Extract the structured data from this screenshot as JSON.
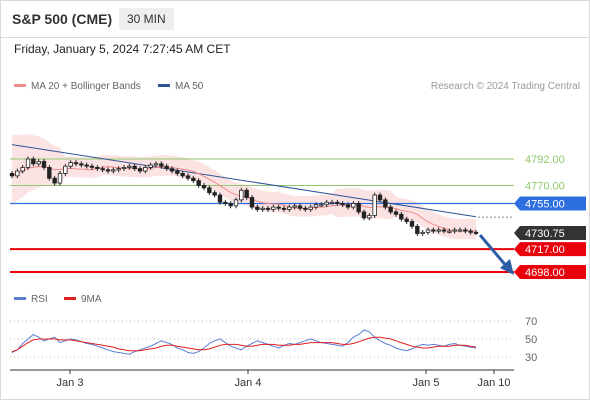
{
  "header": {
    "symbol": "S&P 500 (CME)",
    "timeframe": "30 MIN"
  },
  "datetime": "Friday, January 5, 2024 7:27:45 AM CET",
  "legend_main": [
    {
      "label": "MA 20 + Bollinger Bands",
      "color": "#f08c8c"
    },
    {
      "label": "MA 50",
      "color": "#2e5597"
    }
  ],
  "legend_rsi": [
    {
      "label": "RSI",
      "color": "#5b7fd4"
    },
    {
      "label": "9MA",
      "color": "#e02020"
    }
  ],
  "credit": "Research © 2024 Trading Central",
  "colors": {
    "support": "#e8000b",
    "pivot": "#2e6fe0",
    "resistance": "#8fc86e",
    "last": "#333333",
    "arrow": "#2e5fa6"
  },
  "chart_data": {
    "type": "candlestick",
    "y_range": [
      4680,
      4835
    ],
    "x_labels": [
      "Jan 3",
      "Jan 4",
      "Jan 5",
      "Jan 10"
    ],
    "levels": [
      {
        "value": 4792,
        "label": "4792.00",
        "kind": "resistance"
      },
      {
        "value": 4770,
        "label": "4770.00",
        "kind": "resistance"
      },
      {
        "value": 4755,
        "label": "4755.00",
        "kind": "pivot"
      },
      {
        "value": 4730.75,
        "label": "4730.75",
        "kind": "last"
      },
      {
        "value": 4717,
        "label": "4717.00",
        "kind": "support"
      },
      {
        "value": 4698,
        "label": "4698.00",
        "kind": "support"
      }
    ],
    "close_series": [
      4778,
      4782,
      4785,
      4792,
      4788,
      4790,
      4785,
      4776,
      4772,
      4780,
      4786,
      4789,
      4788,
      4787,
      4786,
      4785,
      4784,
      4783,
      4782,
      4783,
      4784,
      4785,
      4786,
      4784,
      4782,
      4785,
      4787,
      4788,
      4786,
      4784,
      4782,
      4780,
      4778,
      4776,
      4774,
      4770,
      4768,
      4764,
      4762,
      4756,
      4755,
      4753,
      4758,
      4766,
      4760,
      4752,
      4750,
      4751,
      4750,
      4752,
      4751,
      4750,
      4752,
      4753,
      4751,
      4750,
      4752,
      4754,
      4754,
      4756,
      4756,
      4755,
      4754,
      4752,
      4755,
      4748,
      4743,
      4745,
      4762,
      4758,
      4752,
      4748,
      4746,
      4742,
      4740,
      4736,
      4730,
      4731,
      4733,
      4732,
      4733,
      4732,
      4732,
      4733,
      4733,
      4732,
      4731,
      4730.75
    ],
    "ma50_start": 4804,
    "ma50_end": 4744,
    "rsi": {
      "levels": [
        70,
        50,
        30
      ],
      "rsi_values": [
        35,
        38,
        45,
        50,
        55,
        52,
        48,
        50,
        52,
        46,
        48,
        50,
        49,
        47,
        45,
        44,
        42,
        40,
        38,
        36,
        35,
        34,
        33,
        36,
        38,
        40,
        42,
        45,
        48,
        46,
        44,
        40,
        38,
        35,
        34,
        36,
        40,
        45,
        48,
        50,
        46,
        42,
        40,
        38,
        42,
        45,
        48,
        46,
        44,
        42,
        40,
        43,
        45,
        44,
        46,
        48,
        50,
        48,
        46,
        45,
        44,
        43,
        42,
        46,
        52,
        55,
        60,
        58,
        52,
        48,
        45,
        43,
        40,
        38,
        37,
        39,
        42,
        44,
        43,
        44,
        43,
        42,
        44,
        45,
        43,
        42,
        41,
        40
      ],
      "ma9_values": [
        36,
        38,
        42,
        46,
        49,
        50,
        50,
        50,
        50,
        49,
        49,
        49,
        48,
        47,
        46,
        45,
        44,
        43,
        42,
        41,
        39,
        38,
        37,
        37,
        37,
        38,
        39,
        40,
        42,
        43,
        43,
        42,
        41,
        40,
        39,
        38,
        38,
        39,
        41,
        43,
        44,
        44,
        44,
        43,
        42,
        42,
        43,
        44,
        44,
        44,
        43,
        43,
        43,
        44,
        44,
        45,
        46,
        46,
        46,
        46,
        46,
        45,
        44,
        44,
        45,
        47,
        49,
        51,
        52,
        52,
        51,
        50,
        48,
        46,
        44,
        42,
        41,
        40,
        40,
        41,
        42,
        42,
        42,
        43,
        43,
        43,
        42,
        41
      ]
    }
  }
}
